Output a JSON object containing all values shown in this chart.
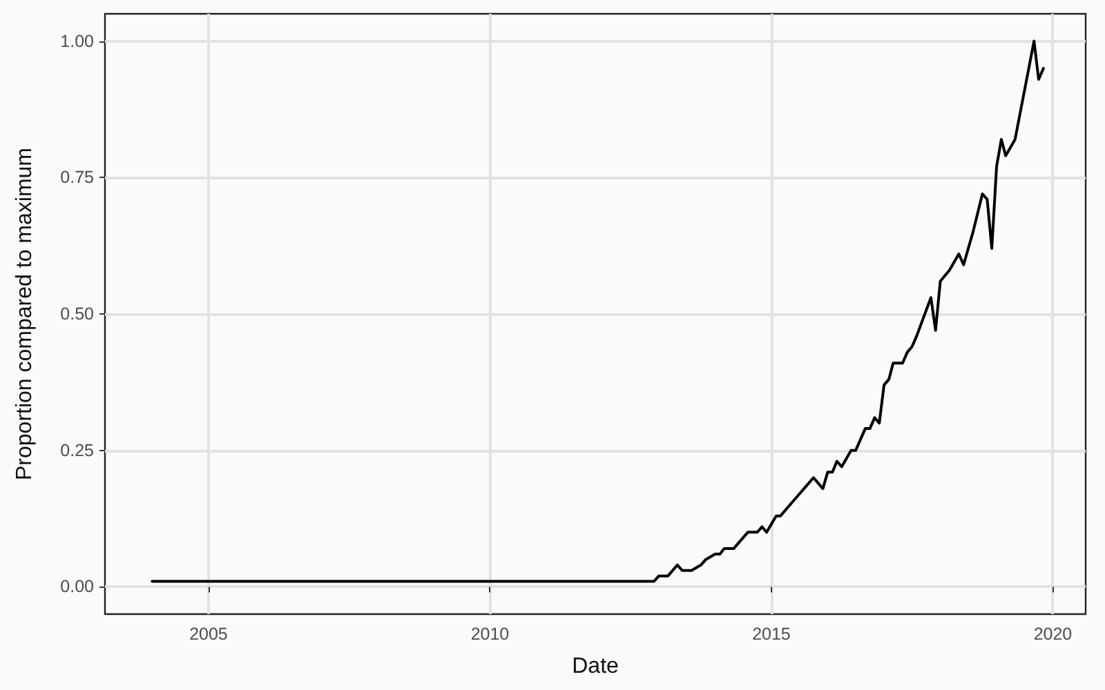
{
  "chart_data": {
    "type": "line",
    "xlabel": "Date",
    "ylabel": "Proportion compared to maximum",
    "x": [
      "2004-01",
      "2012-12",
      "2013-01",
      "2013-03",
      "2013-05",
      "2013-06",
      "2013-08",
      "2013-10",
      "2013-11",
      "2014-01",
      "2014-02",
      "2014-03",
      "2014-05",
      "2014-08",
      "2014-10",
      "2014-11",
      "2014-12",
      "2015-02",
      "2015-03",
      "2015-05",
      "2015-07",
      "2015-08",
      "2015-10",
      "2015-12",
      "2016-01",
      "2016-02",
      "2016-03",
      "2016-04",
      "2016-06",
      "2016-07",
      "2016-08",
      "2016-09",
      "2016-10",
      "2016-11",
      "2016-12",
      "2017-01",
      "2017-02",
      "2017-03",
      "2017-05",
      "2017-06",
      "2017-07",
      "2017-08",
      "2017-11",
      "2017-12",
      "2018-01",
      "2018-03",
      "2018-05",
      "2018-06",
      "2018-08",
      "2018-10",
      "2018-11",
      "2018-12",
      "2019-01",
      "2019-02",
      "2019-03",
      "2019-05",
      "2019-09",
      "2019-10",
      "2019-11"
    ],
    "series": [
      {
        "color": "#000000",
        "values": [
          0.01,
          0.01,
          0.02,
          0.02,
          0.04,
          0.03,
          0.03,
          0.04,
          0.05,
          0.06,
          0.06,
          0.07,
          0.07,
          0.1,
          0.1,
          0.11,
          0.1,
          0.13,
          0.13,
          0.15,
          0.17,
          0.18,
          0.2,
          0.18,
          0.21,
          0.21,
          0.23,
          0.22,
          0.25,
          0.25,
          0.27,
          0.29,
          0.29,
          0.31,
          0.3,
          0.37,
          0.38,
          0.41,
          0.41,
          0.43,
          0.44,
          0.46,
          0.53,
          0.47,
          0.56,
          0.58,
          0.61,
          0.59,
          0.65,
          0.72,
          0.71,
          0.62,
          0.77,
          0.82,
          0.79,
          0.82,
          1.0,
          0.93,
          0.95
        ]
      }
    ],
    "xlim": [
      "2003-03",
      "2020-08"
    ],
    "xticks": [
      "2005",
      "2010",
      "2015",
      "2020"
    ],
    "ylim": [
      -0.05,
      1.05
    ],
    "yticks": [
      {
        "value": 0,
        "label": "0.00"
      },
      {
        "value": 0.25,
        "label": "0.25"
      },
      {
        "value": 0.5,
        "label": "0.50"
      },
      {
        "value": 0.75,
        "label": "0.75"
      },
      {
        "value": 1,
        "label": "1.00"
      }
    ],
    "grid": true,
    "marker": "none",
    "line_style": "solid"
  }
}
